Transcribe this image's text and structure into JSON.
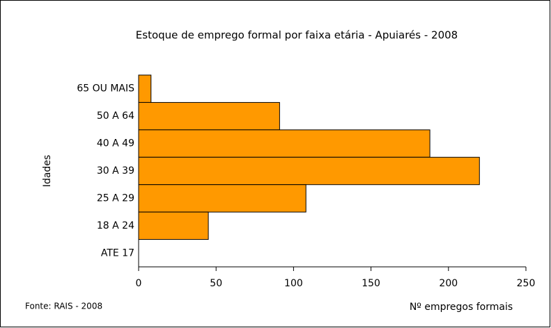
{
  "chart_data": {
    "type": "hbar",
    "title": "Estoque de emprego formal por faixa etária - Apuiarés - 2008",
    "ylabel": "Idades",
    "xlabel": "Nº empregos formais",
    "source": "Fonte: RAIS - 2008",
    "categories": [
      "65 OU MAIS",
      "50 A 64",
      "40 A 49",
      "30 A 39",
      "25 A 29",
      "18 A 24",
      "ATE 17"
    ],
    "values": [
      8,
      91,
      188,
      220,
      108,
      45,
      0
    ],
    "color": "#ff9900",
    "xlim": [
      0,
      250
    ],
    "xticks": [
      0,
      50,
      100,
      150,
      200,
      250
    ]
  }
}
